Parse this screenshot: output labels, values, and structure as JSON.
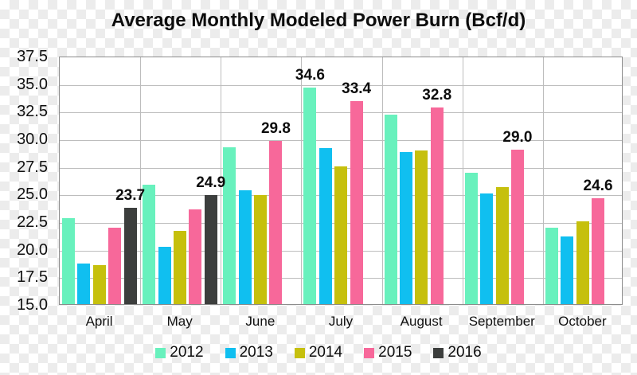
{
  "chart_data": {
    "type": "bar",
    "title": "Average Monthly Modeled Power Burn (Bcf/d)",
    "xlabel": "",
    "ylabel": "",
    "ylim": [
      15.0,
      37.5
    ],
    "ytick_step": 2.5,
    "ytick_labels": [
      "37.5",
      "35.0",
      "32.5",
      "30.0",
      "27.5",
      "25.0",
      "22.5",
      "20.0",
      "17.5",
      "15.0"
    ],
    "grid": "horizontal gridlines plus vertical category separators, plot area white on transparent checkerboard",
    "legend_position": "bottom",
    "categories": [
      "April",
      "May",
      "June",
      "July",
      "August",
      "September",
      "October"
    ],
    "series": [
      {
        "name": "2012",
        "color": "#68F1BD",
        "values": [
          22.8,
          25.8,
          29.2,
          34.6,
          32.2,
          26.9,
          21.9
        ]
      },
      {
        "name": "2013",
        "color": "#10BFF0",
        "values": [
          18.7,
          20.2,
          25.3,
          29.1,
          28.8,
          25.0,
          21.1
        ]
      },
      {
        "name": "2014",
        "color": "#C6C00D",
        "values": [
          18.5,
          21.6,
          24.9,
          27.5,
          28.9,
          25.6,
          22.5
        ]
      },
      {
        "name": "2015",
        "color": "#F7689A",
        "values": [
          21.9,
          23.6,
          29.8,
          33.4,
          32.8,
          29.0,
          24.6
        ]
      },
      {
        "name": "2016",
        "color": "#3C3E3D",
        "values": [
          23.7,
          24.9,
          null,
          null,
          null,
          null,
          null
        ]
      }
    ],
    "data_labels": [
      {
        "category": "April",
        "series": "2016",
        "text": "23.7"
      },
      {
        "category": "May",
        "series": "2016",
        "text": "24.9"
      },
      {
        "category": "June",
        "series": "2015",
        "text": "29.8"
      },
      {
        "category": "July",
        "series": "2012",
        "text": "34.6"
      },
      {
        "category": "July",
        "series": "2015",
        "text": "33.4"
      },
      {
        "category": "August",
        "series": "2015",
        "text": "32.8"
      },
      {
        "category": "September",
        "series": "2015",
        "text": "29.0"
      },
      {
        "category": "October",
        "series": "2015",
        "text": "24.6"
      }
    ]
  }
}
